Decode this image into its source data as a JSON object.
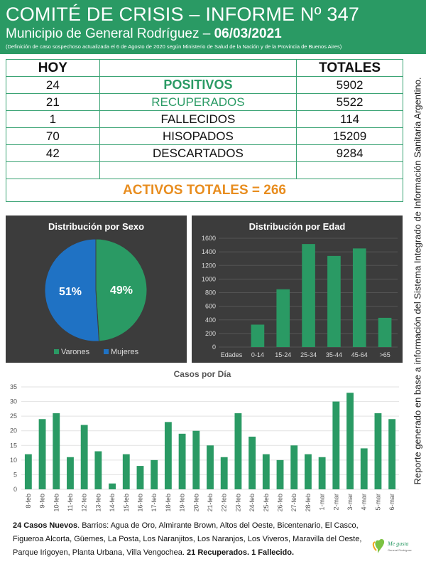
{
  "header": {
    "title": "COMITÉ DE CRISIS – INFORME Nº 347",
    "subtitle_prefix": "Municipio de General Rodríguez – ",
    "date": "06/03/2021",
    "note": "(Definición de caso sospechoso actualizada el 6 de Agosto de 2020 según Ministerio de Salud de la Nación y de la Provincia de Buenos Aires)"
  },
  "stats": {
    "col_today": "HOY",
    "col_total": "TOTALES",
    "rows": [
      {
        "today": "24",
        "label": "POSITIVOS",
        "total": "5902"
      },
      {
        "today": "21",
        "label": "RECUPERADOS",
        "total": "5522"
      },
      {
        "today": "1",
        "label": "FALLECIDOS",
        "total": "114"
      },
      {
        "today": "70",
        "label": "HISOPADOS",
        "total": "15209"
      },
      {
        "today": "42",
        "label": "DESCARTADOS",
        "total": "9284"
      }
    ],
    "activos": "ACTIVOS TOTALES = 266"
  },
  "side_text": "Reporte generado en base a información del Sistema Integrado de Información Sanitaria Argentino.",
  "footer": {
    "new_cases": "24 Casos Nuevos",
    "barrios": ". Barrios: Agua de Oro, Almirante Brown, Altos del Oeste, Bicentenario, El Casco, Figueroa Alcorta, Güemes, La Posta, Los Naranjitos, Los Naranjos, Los Viveros, Maravilla del Oeste, Parque Irigoyen, Planta Urbana, Villa Vengochea. ",
    "recovered": "21 Recuperados. 1 Fallecido."
  },
  "logo": {
    "line1": "Me gusta",
    "line2": "General Rodríguez"
  },
  "colors": {
    "green": "#2a9a64",
    "blue": "#1f72c4",
    "orange": "#e88d1f",
    "panel": "#3c3c3c"
  },
  "chart_data": [
    {
      "type": "pie",
      "title": "Distribución por Sexo",
      "labels": [
        "Varones",
        "Mujeres"
      ],
      "values": [
        49,
        51
      ],
      "value_labels": [
        "49%",
        "51%"
      ],
      "colors": [
        "#2a9a64",
        "#1f72c4"
      ],
      "legend": "bottom"
    },
    {
      "type": "bar",
      "title": "Distribución por Edad",
      "xlabel": "Edades",
      "categories": [
        "0-14",
        "15-24",
        "25-34",
        "35-44",
        "45-64",
        ">65"
      ],
      "values": [
        330,
        850,
        1515,
        1340,
        1450,
        430
      ],
      "ylim": [
        0,
        1600
      ],
      "yticks": [
        0,
        200,
        400,
        600,
        800,
        1000,
        1200,
        1400,
        1600
      ],
      "grid": true
    },
    {
      "type": "bar",
      "title": "Casos por Día",
      "categories": [
        "8-feb",
        "9-feb",
        "10-feb",
        "11-feb",
        "12-feb",
        "13-feb",
        "14-feb",
        "15-feb",
        "16-feb",
        "17-feb",
        "18-feb",
        "19-feb",
        "20-feb",
        "21-feb",
        "22-feb",
        "23-feb",
        "24-feb",
        "25-feb",
        "26-feb",
        "27-feb",
        "28-feb",
        "1-mar",
        "2-mar",
        "3-mar",
        "4-mar",
        "5-mar",
        "6-mar"
      ],
      "values": [
        12,
        24,
        26,
        11,
        22,
        13,
        2,
        12,
        8,
        10,
        23,
        19,
        20,
        15,
        11,
        26,
        18,
        12,
        10,
        15,
        12,
        11,
        30,
        33,
        14,
        26,
        24
      ],
      "ylim": [
        0,
        35
      ],
      "yticks": [
        0,
        5,
        10,
        15,
        20,
        25,
        30,
        35
      ],
      "grid": true
    }
  ]
}
